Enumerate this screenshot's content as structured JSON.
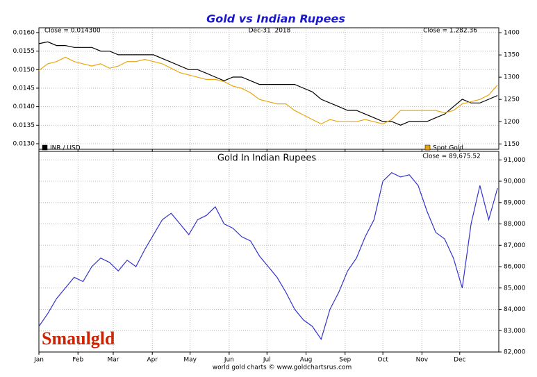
{
  "chart_data": [
    {
      "type": "line",
      "title": "Gold vs Indian Rupees",
      "annotations": [
        "Close = 0.014300",
        "Dec-31  2018",
        "Close = 1,282.36"
      ],
      "x": [
        0,
        7,
        14,
        21,
        28,
        35,
        42,
        49,
        56,
        63,
        70,
        77,
        84,
        91,
        98,
        105,
        112,
        119,
        126,
        133,
        140,
        147,
        154,
        161,
        168,
        175,
        182,
        189,
        196,
        203,
        210,
        217,
        224,
        231,
        238,
        245,
        252,
        259,
        266,
        273,
        280,
        287,
        294,
        301,
        308,
        315,
        322,
        329,
        336,
        343,
        350,
        357,
        364
      ],
      "xlim": [
        0,
        365
      ],
      "xticks": [
        0,
        31,
        59,
        90,
        120,
        151,
        181,
        212,
        243,
        273,
        304,
        334
      ],
      "ylim": [
        0.01285,
        0.01613
      ],
      "yticks": [
        {
          "value": 0.013,
          "label": "0.0130"
        },
        0.0135,
        {
          "value": 0.014,
          "label": "0.0140"
        },
        0.0145,
        {
          "value": 0.015,
          "label": "0.0150"
        },
        0.0155,
        {
          "value": 0.016,
          "label": "0.0160"
        }
      ],
      "y2lim": [
        1138,
        1411
      ],
      "y2ticks": [
        1150,
        1200,
        1250,
        1300,
        1350,
        1400
      ],
      "grid": true,
      "series": [
        {
          "name": "INR / USD",
          "color": "#000000",
          "values": [
            0.0157,
            0.01575,
            0.01565,
            0.01565,
            0.0156,
            0.0156,
            0.0156,
            0.0155,
            0.0155,
            0.0154,
            0.0154,
            0.0154,
            0.0154,
            0.0154,
            0.0153,
            0.0152,
            0.0151,
            0.015,
            0.015,
            0.0149,
            0.0148,
            0.0147,
            0.0148,
            0.0148,
            0.0147,
            0.0146,
            0.0146,
            0.0146,
            0.0146,
            0.0146,
            0.0145,
            0.0144,
            0.0142,
            0.0141,
            0.014,
            0.0139,
            0.0139,
            0.0138,
            0.0137,
            0.0136,
            0.0136,
            0.0135,
            0.0136,
            0.0136,
            0.0136,
            0.0137,
            0.0138,
            0.014,
            0.0142,
            0.0141,
            0.0141,
            0.0142,
            0.0143
          ]
        },
        {
          "name": "Spot Gold",
          "color": "#e8a60c",
          "axis": "y2",
          "values": [
            1315,
            1330,
            1335,
            1345,
            1335,
            1330,
            1325,
            1330,
            1320,
            1325,
            1335,
            1335,
            1340,
            1335,
            1330,
            1320,
            1310,
            1305,
            1300,
            1295,
            1295,
            1290,
            1280,
            1275,
            1265,
            1250,
            1245,
            1240,
            1240,
            1225,
            1215,
            1205,
            1195,
            1205,
            1200,
            1200,
            1200,
            1205,
            1200,
            1195,
            1205,
            1225,
            1225,
            1225,
            1225,
            1225,
            1220,
            1225,
            1240,
            1245,
            1250,
            1260,
            1282.36
          ]
        }
      ]
    },
    {
      "type": "line",
      "title": "Gold In Indian Rupees",
      "annotations": [
        "Close = 89,675.52"
      ],
      "x": [
        0,
        7,
        14,
        21,
        28,
        35,
        42,
        49,
        56,
        63,
        70,
        77,
        84,
        91,
        98,
        105,
        112,
        119,
        126,
        133,
        140,
        147,
        154,
        161,
        168,
        175,
        182,
        189,
        196,
        203,
        210,
        217,
        224,
        231,
        238,
        245,
        252,
        259,
        266,
        273,
        280,
        287,
        294,
        301,
        308,
        315,
        322,
        329,
        336,
        343,
        350,
        357,
        364
      ],
      "xlim": [
        0,
        365
      ],
      "xticks": [
        {
          "value": 0,
          "label": "Jan"
        },
        {
          "value": 31,
          "label": "Feb"
        },
        {
          "value": 59,
          "label": "Mar"
        },
        {
          "value": 90,
          "label": "Apr"
        },
        {
          "value": 120,
          "label": "May"
        },
        {
          "value": 151,
          "label": "Jun"
        },
        {
          "value": 181,
          "label": "Jul"
        },
        {
          "value": 212,
          "label": "Aug"
        },
        {
          "value": 243,
          "label": "Sep"
        },
        {
          "value": 273,
          "label": "Oct"
        },
        {
          "value": 304,
          "label": "Nov"
        },
        {
          "value": 334,
          "label": "Dec"
        }
      ],
      "ylim": [
        82000,
        91400
      ],
      "yaxis_position": "right",
      "yticks": [
        {
          "value": 82000,
          "label": "82,000"
        },
        {
          "value": 83000,
          "label": "83,000"
        },
        {
          "value": 84000,
          "label": "84,000"
        },
        {
          "value": 85000,
          "label": "85,000"
        },
        {
          "value": 86000,
          "label": "86,000"
        },
        {
          "value": 87000,
          "label": "87,000"
        },
        {
          "value": 88000,
          "label": "88,000"
        },
        {
          "value": 89000,
          "label": "89,000"
        },
        {
          "value": 90000,
          "label": "90,000"
        },
        {
          "value": 91000,
          "label": "91,000"
        }
      ],
      "grid": true,
      "series": [
        {
          "name": "Gold In Indian Rupees",
          "color": "#3333cc",
          "values": [
            83200,
            83800,
            84500,
            85000,
            85500,
            85300,
            86000,
            86400,
            86200,
            85800,
            86300,
            86000,
            86800,
            87500,
            88200,
            88500,
            88000,
            87500,
            88200,
            88400,
            88800,
            88000,
            87800,
            87400,
            87200,
            86500,
            86000,
            85500,
            84800,
            84000,
            83500,
            83200,
            82600,
            84000,
            84800,
            85800,
            86400,
            87400,
            88200,
            90000,
            90400,
            90200,
            90300,
            89800,
            88600,
            87600,
            87300,
            86400,
            85000,
            88000,
            89800,
            88200,
            89675.52
          ]
        }
      ]
    }
  ],
  "logo": "Smaulgld",
  "footer": "world gold charts © www.goldchartsrus.com"
}
